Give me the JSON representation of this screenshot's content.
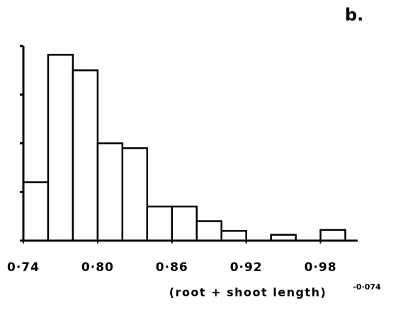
{
  "chart_data": {
    "type": "histogram",
    "panel_label": "b.",
    "xlabel": "(root + shoot length)",
    "xlabel_exponent": "-0·074",
    "bins": [
      0.74,
      0.76,
      0.78,
      0.8,
      0.82,
      0.84,
      0.86,
      0.88,
      0.9,
      0.92,
      0.94,
      0.96,
      0.98,
      1.0
    ],
    "values": [
      1.2,
      3.82,
      3.5,
      2.0,
      1.9,
      0.7,
      0.7,
      0.4,
      0.2,
      0,
      0.12,
      0,
      0.22
    ],
    "color": "#ffffff",
    "xlim": [
      0.74,
      1.01
    ],
    "xticks": [
      {
        "value": 0.74,
        "label": "0·74"
      },
      {
        "value": 0.8,
        "label": "0·80"
      },
      {
        "value": 0.86,
        "label": "0·86"
      },
      {
        "value": 0.92,
        "label": "0·92"
      },
      {
        "value": 0.98,
        "label": "0·98"
      }
    ],
    "ylim": [
      0,
      4
    ],
    "yticks": [
      0,
      1,
      2,
      3,
      4
    ]
  }
}
